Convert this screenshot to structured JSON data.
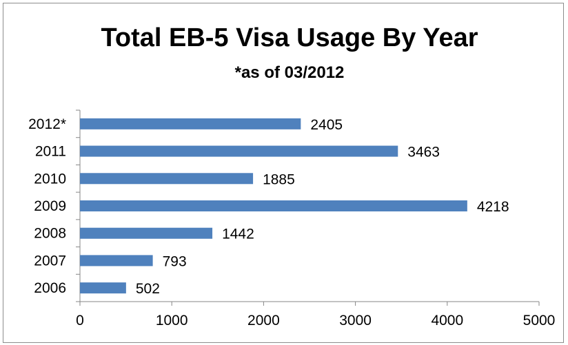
{
  "chart_data": {
    "type": "bar",
    "orientation": "horizontal",
    "title": "Total EB-5 Visa Usage By Year",
    "subtitle": "*as of 03/2012",
    "categories": [
      "2012*",
      "2011",
      "2010",
      "2009",
      "2008",
      "2007",
      "2006"
    ],
    "values": [
      2405,
      3463,
      1885,
      4218,
      1442,
      793,
      502
    ],
    "data_labels": [
      "2405",
      "3463",
      "1885",
      "4218",
      "1442",
      "793",
      "502"
    ],
    "xlim": [
      0,
      5000
    ],
    "x_ticks": [
      "0",
      "1000",
      "2000",
      "3000",
      "4000",
      "5000"
    ],
    "grid": false,
    "legend": "none",
    "bar_color": "#4f81bd"
  }
}
